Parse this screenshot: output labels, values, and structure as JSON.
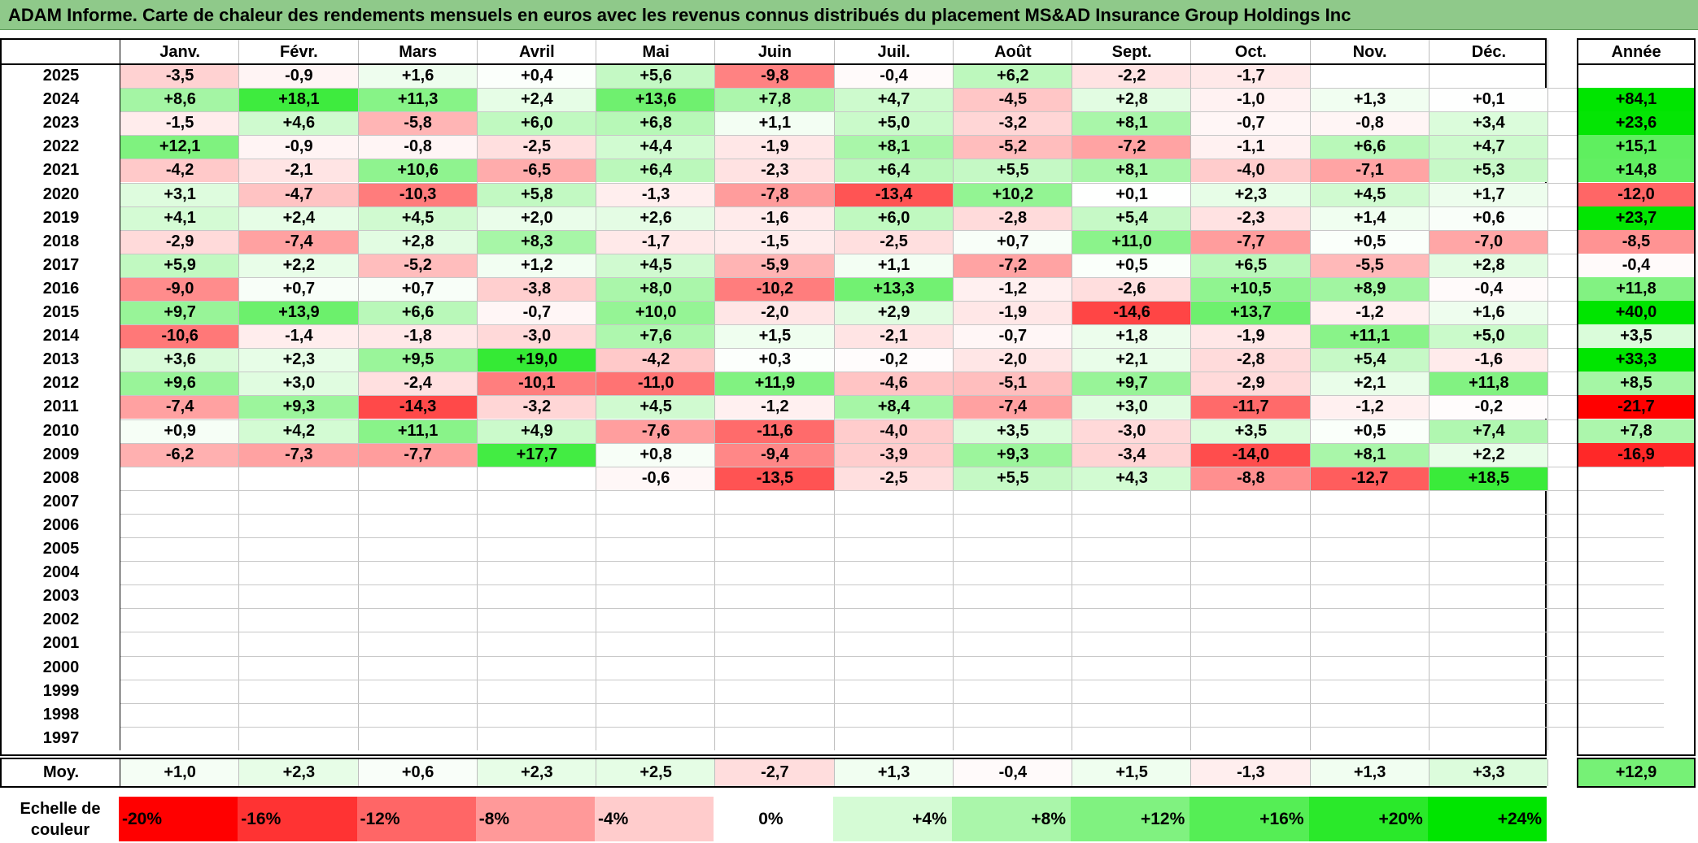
{
  "title": "ADAM Informe. Carte de chaleur des rendements mensuels en euros avec les revenus connus distribués du placement MS&AD Insurance Group Holdings Inc",
  "chart_data": {
    "type": "heatmap",
    "months": [
      "Janv.",
      "Févr.",
      "Mars",
      "Avril",
      "Mai",
      "Juin",
      "Juil.",
      "Août",
      "Sept.",
      "Oct.",
      "Nov.",
      "Déc."
    ],
    "year_column_label": "Année",
    "average_row_label": "Moy.",
    "rows": [
      {
        "year": "2025",
        "values": [
          "-3,5",
          "-0,9",
          "+1,6",
          "+0,4",
          "+5,6",
          "-9,8",
          "-0,4",
          "+6,2",
          "-2,2",
          "-1,7",
          "",
          ""
        ],
        "annual": ""
      },
      {
        "year": "2024",
        "values": [
          "+8,6",
          "+18,1",
          "+11,3",
          "+2,4",
          "+13,6",
          "+7,8",
          "+4,7",
          "-4,5",
          "+2,8",
          "-1,0",
          "+1,3",
          "+0,1"
        ],
        "annual": "+84,1"
      },
      {
        "year": "2023",
        "values": [
          "-1,5",
          "+4,6",
          "-5,8",
          "+6,0",
          "+6,8",
          "+1,1",
          "+5,0",
          "-3,2",
          "+8,1",
          "-0,7",
          "-0,8",
          "+3,4"
        ],
        "annual": "+23,6"
      },
      {
        "year": "2022",
        "values": [
          "+12,1",
          "-0,9",
          "-0,8",
          "-2,5",
          "+4,4",
          "-1,9",
          "+8,1",
          "-5,2",
          "-7,2",
          "-1,1",
          "+6,6",
          "+4,7"
        ],
        "annual": "+15,1"
      },
      {
        "year": "2021",
        "values": [
          "-4,2",
          "-2,1",
          "+10,6",
          "-6,5",
          "+6,4",
          "-2,3",
          "+6,4",
          "+5,5",
          "+8,1",
          "-4,0",
          "-7,1",
          "+5,3"
        ],
        "annual": "+14,8"
      },
      {
        "year": "2020",
        "values": [
          "+3,1",
          "-4,7",
          "-10,3",
          "+5,8",
          "-1,3",
          "-7,8",
          "-13,4",
          "+10,2",
          "+0,1",
          "+2,3",
          "+4,5",
          "+1,7"
        ],
        "annual": "-12,0"
      },
      {
        "year": "2019",
        "values": [
          "+4,1",
          "+2,4",
          "+4,5",
          "+2,0",
          "+2,6",
          "-1,6",
          "+6,0",
          "-2,8",
          "+5,4",
          "-2,3",
          "+1,4",
          "+0,6"
        ],
        "annual": "+23,7"
      },
      {
        "year": "2018",
        "values": [
          "-2,9",
          "-7,4",
          "+2,8",
          "+8,3",
          "-1,7",
          "-1,5",
          "-2,5",
          "+0,7",
          "+11,0",
          "-7,7",
          "+0,5",
          "-7,0"
        ],
        "annual": "-8,5"
      },
      {
        "year": "2017",
        "values": [
          "+5,9",
          "+2,2",
          "-5,2",
          "+1,2",
          "+4,5",
          "-5,9",
          "+1,1",
          "-7,2",
          "+0,5",
          "+6,5",
          "-5,5",
          "+2,8"
        ],
        "annual": "-0,4"
      },
      {
        "year": "2016",
        "values": [
          "-9,0",
          "+0,7",
          "+0,7",
          "-3,8",
          "+8,0",
          "-10,2",
          "+13,3",
          "-1,2",
          "-2,6",
          "+10,5",
          "+8,9",
          "-0,4"
        ],
        "annual": "+11,8"
      },
      {
        "year": "2015",
        "values": [
          "+9,7",
          "+13,9",
          "+6,6",
          "-0,7",
          "+10,0",
          "-2,0",
          "+2,9",
          "-1,9",
          "-14,6",
          "+13,7",
          "-1,2",
          "+1,6"
        ],
        "annual": "+40,0"
      },
      {
        "year": "2014",
        "values": [
          "-10,6",
          "-1,4",
          "-1,8",
          "-3,0",
          "+7,6",
          "+1,5",
          "-2,1",
          "-0,7",
          "+1,8",
          "-1,9",
          "+11,1",
          "+5,0"
        ],
        "annual": "+3,5"
      },
      {
        "year": "2013",
        "values": [
          "+3,6",
          "+2,3",
          "+9,5",
          "+19,0",
          "-4,2",
          "+0,3",
          "-0,2",
          "-2,0",
          "+2,1",
          "-2,8",
          "+5,4",
          "-1,6"
        ],
        "annual": "+33,3"
      },
      {
        "year": "2012",
        "values": [
          "+9,6",
          "+3,0",
          "-2,4",
          "-10,1",
          "-11,0",
          "+11,9",
          "-4,6",
          "-5,1",
          "+9,7",
          "-2,9",
          "+2,1",
          "+11,8"
        ],
        "annual": "+8,5"
      },
      {
        "year": "2011",
        "values": [
          "-7,4",
          "+9,3",
          "-14,3",
          "-3,2",
          "+4,5",
          "-1,2",
          "+8,4",
          "-7,4",
          "+3,0",
          "-11,7",
          "-1,2",
          "-0,2"
        ],
        "annual": "-21,7"
      },
      {
        "year": "2010",
        "values": [
          "+0,9",
          "+4,2",
          "+11,1",
          "+4,9",
          "-7,6",
          "-11,6",
          "-4,0",
          "+3,5",
          "-3,0",
          "+3,5",
          "+0,5",
          "+7,4"
        ],
        "annual": "+7,8"
      },
      {
        "year": "2009",
        "values": [
          "-6,2",
          "-7,3",
          "-7,7",
          "+17,7",
          "+0,8",
          "-9,4",
          "-3,9",
          "+9,3",
          "-3,4",
          "-14,0",
          "+8,1",
          "+2,2"
        ],
        "annual": "-16,9"
      },
      {
        "year": "2008",
        "values": [
          "",
          "",
          "",
          "",
          "-0,6",
          "-13,5",
          "-2,5",
          "+5,5",
          "+4,3",
          "-8,8",
          "-12,7",
          "+18,5"
        ],
        "annual": ""
      },
      {
        "year": "2007",
        "values": [
          "",
          "",
          "",
          "",
          "",
          "",
          "",
          "",
          "",
          "",
          "",
          ""
        ],
        "annual": ""
      },
      {
        "year": "2006",
        "values": [
          "",
          "",
          "",
          "",
          "",
          "",
          "",
          "",
          "",
          "",
          "",
          ""
        ],
        "annual": ""
      },
      {
        "year": "2005",
        "values": [
          "",
          "",
          "",
          "",
          "",
          "",
          "",
          "",
          "",
          "",
          "",
          ""
        ],
        "annual": ""
      },
      {
        "year": "2004",
        "values": [
          "",
          "",
          "",
          "",
          "",
          "",
          "",
          "",
          "",
          "",
          "",
          ""
        ],
        "annual": ""
      },
      {
        "year": "2003",
        "values": [
          "",
          "",
          "",
          "",
          "",
          "",
          "",
          "",
          "",
          "",
          "",
          ""
        ],
        "annual": ""
      },
      {
        "year": "2002",
        "values": [
          "",
          "",
          "",
          "",
          "",
          "",
          "",
          "",
          "",
          "",
          "",
          ""
        ],
        "annual": ""
      },
      {
        "year": "2001",
        "values": [
          "",
          "",
          "",
          "",
          "",
          "",
          "",
          "",
          "",
          "",
          "",
          ""
        ],
        "annual": ""
      },
      {
        "year": "2000",
        "values": [
          "",
          "",
          "",
          "",
          "",
          "",
          "",
          "",
          "",
          "",
          "",
          ""
        ],
        "annual": ""
      },
      {
        "year": "1999",
        "values": [
          "",
          "",
          "",
          "",
          "",
          "",
          "",
          "",
          "",
          "",
          "",
          ""
        ],
        "annual": ""
      },
      {
        "year": "1998",
        "values": [
          "",
          "",
          "",
          "",
          "",
          "",
          "",
          "",
          "",
          "",
          "",
          ""
        ],
        "annual": ""
      },
      {
        "year": "1997",
        "values": [
          "",
          "",
          "",
          "",
          "",
          "",
          "",
          "",
          "",
          "",
          "",
          ""
        ],
        "annual": ""
      }
    ],
    "averages": [
      "+1,0",
      "+2,3",
      "+0,6",
      "+2,3",
      "+2,5",
      "-2,7",
      "+1,3",
      "-0,4",
      "+1,5",
      "-1,3",
      "+1,3",
      "+3,3"
    ],
    "average_annual": "+12,9",
    "color_scale_label": "Echelle de couleur",
    "color_scale": [
      {
        "label": "-20%",
        "value": -20,
        "color": "#ff0000"
      },
      {
        "label": "-16%",
        "value": -16,
        "color": "#ff3333"
      },
      {
        "label": "-12%",
        "value": -12,
        "color": "#ff6666"
      },
      {
        "label": "-8%",
        "value": -8,
        "color": "#ff9999"
      },
      {
        "label": "-4%",
        "value": -4,
        "color": "#ffcccc"
      },
      {
        "label": "0%",
        "value": 0,
        "color": "#ffffff"
      },
      {
        "label": "+4%",
        "value": 4,
        "color": "#d5fbd5"
      },
      {
        "label": "+8%",
        "value": 8,
        "color": "#aaf6aa"
      },
      {
        "label": "+12%",
        "value": 12,
        "color": "#80f280"
      },
      {
        "label": "+16%",
        "value": 16,
        "color": "#55ee55"
      },
      {
        "label": "+20%",
        "value": 20,
        "color": "#2ae92a"
      },
      {
        "label": "+24%",
        "value": 24,
        "color": "#00e500"
      }
    ]
  }
}
